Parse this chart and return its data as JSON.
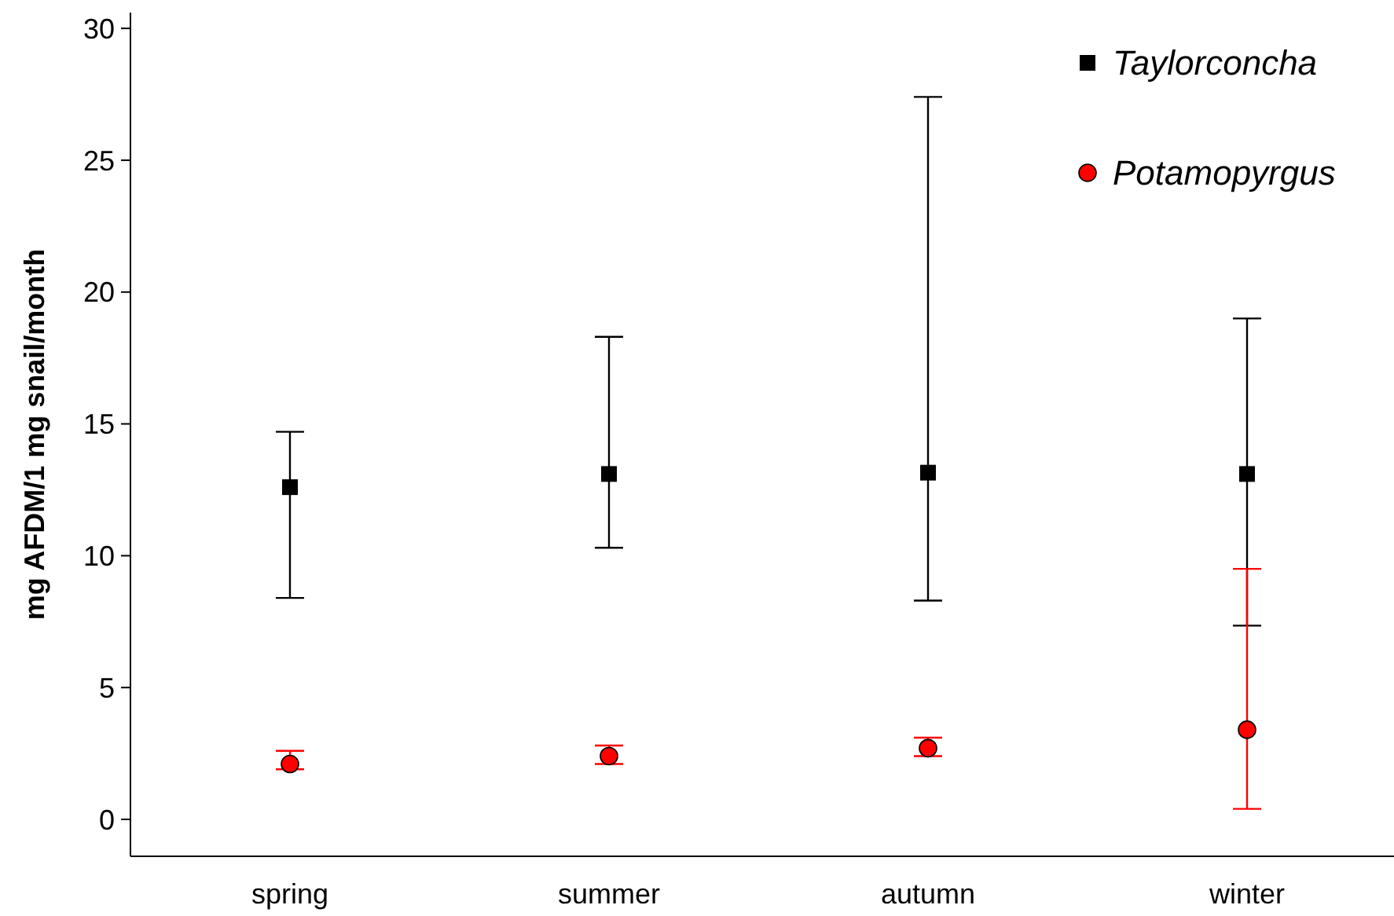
{
  "chart_data": {
    "type": "scatter",
    "ylabel": "mg AFDM/1 mg snail/month",
    "categories": [
      "spring",
      "summer",
      "autumn",
      "winter"
    ],
    "ylim": [
      -1.4,
      30.6
    ],
    "yticks": [
      0,
      5,
      10,
      15,
      20,
      25,
      30
    ],
    "grid": false,
    "legend": "top right",
    "series": [
      {
        "name": "Taylorconcha",
        "color": "#000000",
        "marker": "square",
        "values": [
          12.6,
          13.1,
          13.15,
          13.1
        ],
        "errors": [
          [
            8.4,
            14.7
          ],
          [
            10.3,
            18.3
          ],
          [
            8.3,
            27.4
          ],
          [
            7.35,
            19.0
          ]
        ]
      },
      {
        "name": "Potamopyrgus",
        "color": "#ff0000",
        "marker": "circle",
        "values": [
          2.1,
          2.4,
          2.7,
          3.4
        ],
        "errors": [
          [
            1.9,
            2.6
          ],
          [
            2.1,
            2.8
          ],
          [
            2.4,
            3.1
          ],
          [
            0.4,
            9.5
          ]
        ]
      }
    ]
  }
}
